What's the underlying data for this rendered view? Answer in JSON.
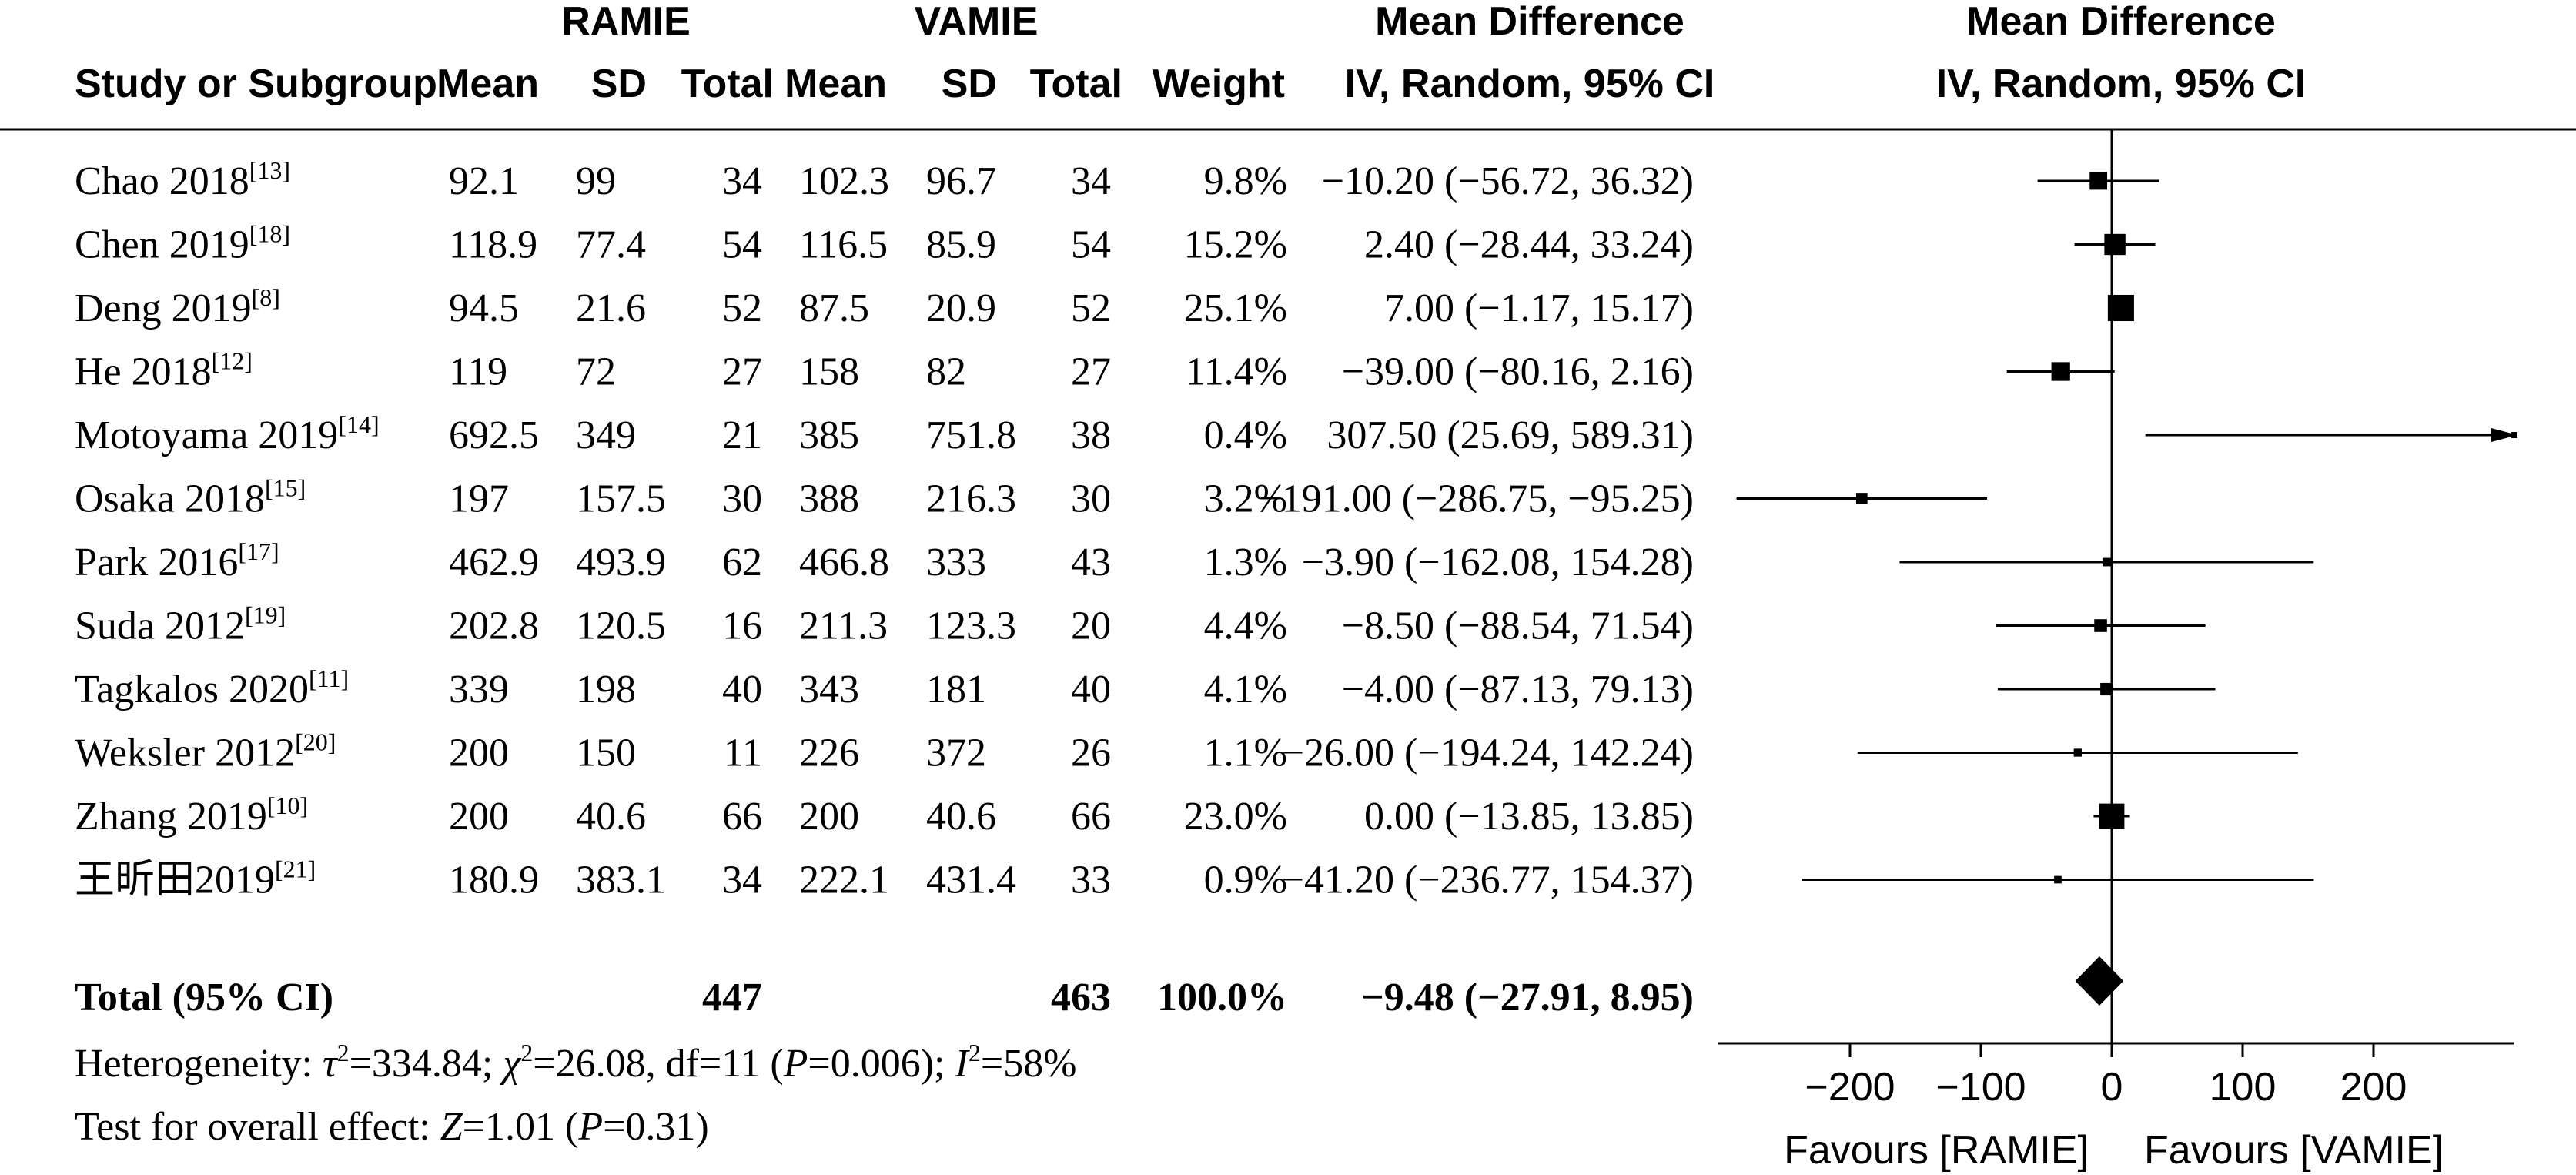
{
  "chart_data": {
    "type": "forest",
    "header": {
      "group1": "RAMIE",
      "group2": "VAMIE",
      "md_top": "Mean Difference",
      "md_sub": "IV, Random, 95% CI",
      "plot_top": "Mean Difference",
      "plot_sub": "IV, Random, 95% CI",
      "cols": {
        "study": "Study or Subgroup",
        "mean1": "Mean",
        "sd1": "SD",
        "total1": "Total",
        "mean2": "Mean",
        "sd2": "SD",
        "total2": "Total",
        "weight": "Weight"
      }
    },
    "studies": [
      {
        "name": "Chao 2018",
        "ref": "[13]",
        "mean1": "92.1",
        "sd1": "99",
        "n1": "34",
        "mean2": "102.3",
        "sd2": "96.7",
        "n2": "34",
        "weight": "9.8%",
        "ci": "−10.20 (−56.72, 36.32)",
        "md": -10.2,
        "lo": -56.72,
        "hi": 36.32,
        "w": 9.8
      },
      {
        "name": "Chen 2019",
        "ref": "[18]",
        "mean1": "118.9",
        "sd1": "77.4",
        "n1": "54",
        "mean2": "116.5",
        "sd2": "85.9",
        "n2": "54",
        "weight": "15.2%",
        "ci": "2.40 (−28.44, 33.24)",
        "md": 2.4,
        "lo": -28.44,
        "hi": 33.24,
        "w": 15.2
      },
      {
        "name": "Deng 2019",
        "ref": "[8]",
        "mean1": "94.5",
        "sd1": "21.6",
        "n1": "52",
        "mean2": "87.5",
        "sd2": "20.9",
        "n2": "52",
        "weight": "25.1%",
        "ci": "7.00 (−1.17, 15.17)",
        "md": 7.0,
        "lo": -1.17,
        "hi": 15.17,
        "w": 25.1
      },
      {
        "name": "He 2018",
        "ref": "[12]",
        "mean1": "119",
        "sd1": "72",
        "n1": "27",
        "mean2": "158",
        "sd2": "82",
        "n2": "27",
        "weight": "11.4%",
        "ci": "−39.00 (−80.16, 2.16)",
        "md": -39.0,
        "lo": -80.16,
        "hi": 2.16,
        "w": 11.4
      },
      {
        "name": "Motoyama 2019",
        "ref": "[14]",
        "mean1": "692.5",
        "sd1": "349",
        "n1": "21",
        "mean2": "385",
        "sd2": "751.8",
        "n2": "38",
        "weight": "0.4%",
        "ci": "307.50 (25.69, 589.31)",
        "md": 307.5,
        "lo": 25.69,
        "hi": 589.31,
        "w": 0.4
      },
      {
        "name": "Osaka 2018",
        "ref": "[15]",
        "mean1": "197",
        "sd1": "157.5",
        "n1": "30",
        "mean2": "388",
        "sd2": "216.3",
        "n2": "30",
        "weight": "3.2%",
        "ci": "−191.00 (−286.75, −95.25)",
        "md": -191.0,
        "lo": -286.75,
        "hi": -95.25,
        "w": 3.2
      },
      {
        "name": "Park 2016",
        "ref": "[17]",
        "mean1": "462.9",
        "sd1": "493.9",
        "n1": "62",
        "mean2": "466.8",
        "sd2": "333",
        "n2": "43",
        "weight": "1.3%",
        "ci": "−3.90 (−162.08, 154.28)",
        "md": -3.9,
        "lo": -162.08,
        "hi": 154.28,
        "w": 1.3
      },
      {
        "name": "Suda 2012",
        "ref": "[19]",
        "mean1": "202.8",
        "sd1": "120.5",
        "n1": "16",
        "mean2": "211.3",
        "sd2": "123.3",
        "n2": "20",
        "weight": "4.4%",
        "ci": "−8.50 (−88.54, 71.54)",
        "md": -8.5,
        "lo": -88.54,
        "hi": 71.54,
        "w": 4.4
      },
      {
        "name": "Tagkalos 2020",
        "ref": "[11]",
        "mean1": "339",
        "sd1": "198",
        "n1": "40",
        "mean2": "343",
        "sd2": "181",
        "n2": "40",
        "weight": "4.1%",
        "ci": "−4.00 (−87.13, 79.13)",
        "md": -4.0,
        "lo": -87.13,
        "hi": 79.13,
        "w": 4.1
      },
      {
        "name": "Weksler 2012",
        "ref": "[20]",
        "mean1": "200",
        "sd1": "150",
        "n1": "11",
        "mean2": "226",
        "sd2": "372",
        "n2": "26",
        "weight": "1.1%",
        "ci": "−26.00 (−194.24, 142.24)",
        "md": -26.0,
        "lo": -194.24,
        "hi": 142.24,
        "w": 1.1
      },
      {
        "name": "Zhang 2019",
        "ref": "[10]",
        "mean1": "200",
        "sd1": "40.6",
        "n1": "66",
        "mean2": "200",
        "sd2": "40.6",
        "n2": "66",
        "weight": "23.0%",
        "ci": "0.00 (−13.85, 13.85)",
        "md": 0.0,
        "lo": -13.85,
        "hi": 13.85,
        "w": 23.0
      },
      {
        "name": "王昕田2019",
        "ref": "[21]",
        "mean1": "180.9",
        "sd1": "383.1",
        "n1": "34",
        "mean2": "222.1",
        "sd2": "431.4",
        "n2": "33",
        "weight": "0.9%",
        "ci": "−41.20 (−236.77, 154.37)",
        "md": -41.2,
        "lo": -236.77,
        "hi": 154.37,
        "w": 0.9
      }
    ],
    "total": {
      "label": "Total (95% CI)",
      "n1": "447",
      "n2": "463",
      "weight": "100.0%",
      "ci": "−9.48 (−27.91, 8.95)",
      "md": -9.48,
      "lo": -27.91,
      "hi": 8.95
    },
    "heterogeneity": {
      "prefix": "Heterogeneity: ",
      "tau_sym": "τ",
      "tau_val": "=334.84; ",
      "chi_sym": "χ",
      "chi_val": "=26.08, df=11 (",
      "p_sym": "P",
      "p_val": "=0.006); ",
      "i_sym": "I",
      "i_val": "=58%",
      "sup2": "2"
    },
    "overall": {
      "prefix": "Test for overall effect: ",
      "z_sym": "Z",
      "z_val": "=1.01 (",
      "p_sym": "P",
      "p_val": "=0.31)"
    },
    "axis": {
      "ticks": [
        -200,
        -100,
        0,
        100,
        200
      ],
      "tick_labels": [
        "−200",
        "−100",
        "0",
        "100",
        "200"
      ],
      "xlim": [
        -290,
        300
      ],
      "left_label": "Favours [RAMIE]",
      "right_label": "Favours [VAMIE]"
    }
  }
}
